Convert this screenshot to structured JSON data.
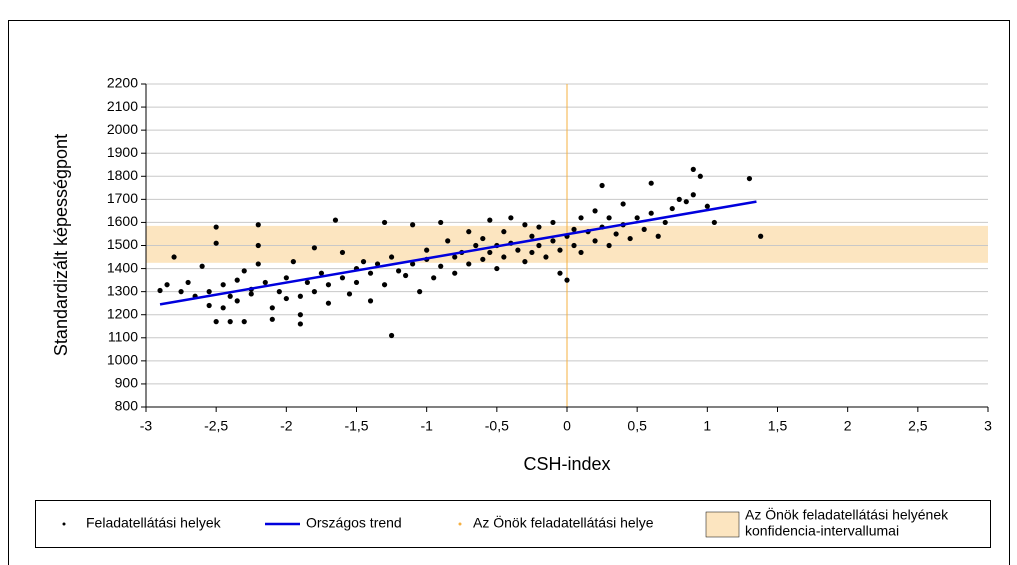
{
  "chart_data": {
    "type": "scatter",
    "xlabel": "CSH-index",
    "ylabel": "Standardizált képességpont",
    "xlim": [
      -3,
      3
    ],
    "ylim": [
      800,
      2200
    ],
    "xticks": [
      -3,
      {
        "value": -2.5,
        "label": "-2,5"
      },
      -2,
      {
        "value": -1.5,
        "label": "-1,5"
      },
      -1,
      {
        "value": -0.5,
        "label": "-0,5"
      },
      0,
      {
        "value": 0.5,
        "label": "0,5"
      },
      1,
      {
        "value": 1.5,
        "label": "1,5"
      },
      2,
      {
        "value": 2.5,
        "label": "2,5"
      },
      3
    ],
    "yticks": [
      800,
      900,
      1000,
      1100,
      1200,
      1300,
      1400,
      1500,
      1600,
      1700,
      1800,
      1900,
      2000,
      2100,
      2200
    ],
    "grid": true,
    "series": [
      {
        "name": "Feladatellátási helyek",
        "color": "#000000",
        "x": [
          -2.9,
          -2.85,
          -2.8,
          -2.75,
          -2.7,
          -2.65,
          -2.6,
          -2.55,
          -2.55,
          -2.5,
          -2.5,
          -2.5,
          -2.45,
          -2.45,
          -2.4,
          -2.4,
          -2.35,
          -2.35,
          -2.3,
          -2.3,
          -2.25,
          -2.25,
          -2.2,
          -2.2,
          -2.2,
          -2.15,
          -2.1,
          -2.1,
          -2.05,
          -2.0,
          -2.0,
          -1.95,
          -1.9,
          -1.9,
          -1.9,
          -1.85,
          -1.8,
          -1.8,
          -1.75,
          -1.7,
          -1.7,
          -1.65,
          -1.6,
          -1.6,
          -1.55,
          -1.5,
          -1.5,
          -1.45,
          -1.4,
          -1.4,
          -1.35,
          -1.3,
          -1.3,
          -1.25,
          -1.25,
          -1.2,
          -1.15,
          -1.1,
          -1.1,
          -1.05,
          -1.0,
          -1.0,
          -0.95,
          -0.9,
          -0.9,
          -0.85,
          -0.8,
          -0.8,
          -0.75,
          -0.7,
          -0.7,
          -0.65,
          -0.6,
          -0.6,
          -0.55,
          -0.55,
          -0.5,
          -0.5,
          -0.45,
          -0.45,
          -0.4,
          -0.4,
          -0.35,
          -0.3,
          -0.3,
          -0.25,
          -0.25,
          -0.2,
          -0.2,
          -0.15,
          -0.1,
          -0.1,
          -0.05,
          -0.05,
          0,
          0,
          0.05,
          0.05,
          0.1,
          0.1,
          0.15,
          0.2,
          0.2,
          0.25,
          0.25,
          0.3,
          0.3,
          0.35,
          0.4,
          0.4,
          0.45,
          0.5,
          0.55,
          0.6,
          0.6,
          0.65,
          0.7,
          0.75,
          0.8,
          0.85,
          0.9,
          0.9,
          0.95,
          1.0,
          1.05,
          1.3,
          1.38
        ],
        "values": [
          1305,
          1330,
          1450,
          1300,
          1340,
          1280,
          1410,
          1240,
          1300,
          1580,
          1510,
          1170,
          1330,
          1230,
          1170,
          1280,
          1260,
          1350,
          1390,
          1170,
          1310,
          1290,
          1590,
          1420,
          1500,
          1340,
          1230,
          1180,
          1300,
          1360,
          1270,
          1430,
          1160,
          1280,
          1200,
          1340,
          1300,
          1490,
          1380,
          1330,
          1250,
          1610,
          1360,
          1470,
          1290,
          1400,
          1340,
          1430,
          1260,
          1380,
          1420,
          1600,
          1330,
          1110,
          1450,
          1390,
          1370,
          1590,
          1420,
          1300,
          1440,
          1480,
          1360,
          1600,
          1410,
          1520,
          1450,
          1380,
          1470,
          1560,
          1420,
          1500,
          1440,
          1530,
          1610,
          1470,
          1400,
          1500,
          1560,
          1450,
          1620,
          1510,
          1480,
          1590,
          1430,
          1540,
          1470,
          1500,
          1580,
          1450,
          1520,
          1600,
          1480,
          1380,
          1540,
          1350,
          1570,
          1500,
          1620,
          1470,
          1560,
          1650,
          1520,
          1760,
          1580,
          1500,
          1620,
          1550,
          1680,
          1590,
          1530,
          1620,
          1570,
          1770,
          1640,
          1540,
          1600,
          1660,
          1700,
          1690,
          1830,
          1720,
          1800,
          1670,
          1600,
          1790,
          1540
        ]
      },
      {
        "name": "Országos trend",
        "color": "#0000dd",
        "x": [
          -2.9,
          1.35
        ],
        "values": [
          1245,
          1690
        ]
      },
      {
        "name": "Az Önök feladatellátási helye",
        "color": "#f5b041",
        "reference_x": 0
      },
      {
        "name_lines": [
          "Az Önök feladatellátási helyének",
          "konfidencia-intervallumai"
        ],
        "color": "#fce5c0",
        "band": [
          1425,
          1585
        ]
      }
    ]
  }
}
